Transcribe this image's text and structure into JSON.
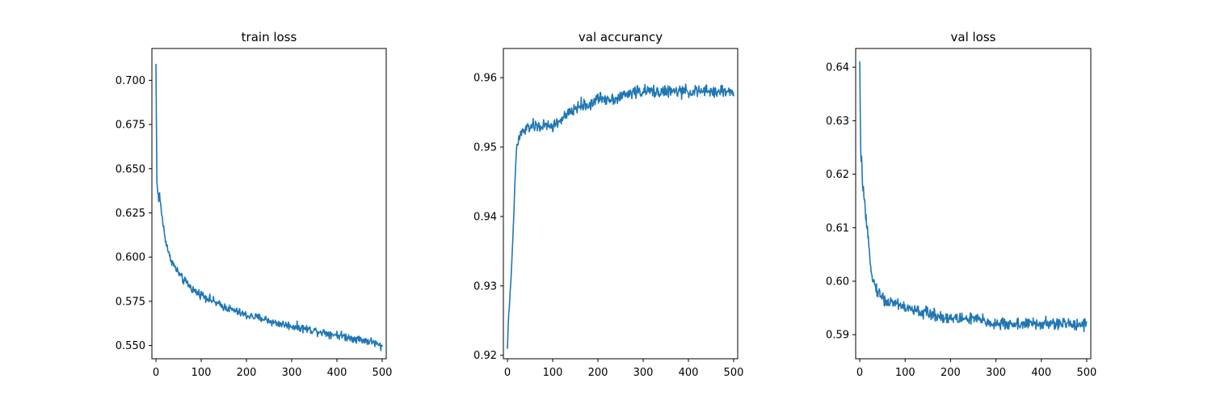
{
  "chart_data": [
    {
      "type": "line",
      "title": "train loss",
      "xlabel": "",
      "ylabel": "",
      "xlim": [
        -9,
        509
      ],
      "ylim": [
        0.5425,
        0.718
      ],
      "xticks": [
        0,
        100,
        200,
        300,
        400,
        500
      ],
      "yticks": [
        0.55,
        0.575,
        0.6,
        0.625,
        0.65,
        0.675,
        0.7
      ],
      "ytick_labels": [
        "0.550",
        "0.575",
        "0.600",
        "0.625",
        "0.650",
        "0.675",
        "0.700"
      ],
      "grid": false,
      "series": [
        {
          "color": "#1f77b4",
          "x": [
            0,
            2,
            4,
            6,
            8,
            10,
            15,
            20,
            25,
            30,
            35,
            40,
            50,
            60,
            70,
            80,
            90,
            100,
            120,
            140,
            160,
            180,
            200,
            220,
            240,
            260,
            280,
            300,
            320,
            340,
            360,
            380,
            400,
            420,
            440,
            460,
            480,
            500
          ],
          "values": [
            0.709,
            0.642,
            0.638,
            0.632,
            0.635,
            0.63,
            0.62,
            0.611,
            0.606,
            0.6,
            0.598,
            0.595,
            0.591,
            0.587,
            0.585,
            0.582,
            0.58,
            0.579,
            0.576,
            0.573,
            0.571,
            0.569,
            0.567,
            0.566,
            0.565,
            0.563,
            0.562,
            0.561,
            0.56,
            0.559,
            0.558,
            0.557,
            0.556,
            0.555,
            0.554,
            0.553,
            0.552,
            0.549
          ],
          "noise": 0.0035
        }
      ]
    },
    {
      "type": "line",
      "title": "val accurancy",
      "xlabel": "",
      "ylabel": "",
      "xlim": [
        -9,
        509
      ],
      "ylim": [
        0.9195,
        0.9642
      ],
      "xticks": [
        0,
        100,
        200,
        300,
        400,
        500
      ],
      "yticks": [
        0.92,
        0.93,
        0.94,
        0.95,
        0.96
      ],
      "ytick_labels": [
        "0.92",
        "0.93",
        "0.94",
        "0.95",
        "0.96"
      ],
      "grid": false,
      "series": [
        {
          "color": "#1f77b4",
          "x": [
            0,
            2,
            4,
            6,
            8,
            10,
            12,
            14,
            16,
            18,
            20,
            25,
            30,
            40,
            50,
            60,
            80,
            100,
            120,
            140,
            160,
            180,
            200,
            240,
            280,
            320,
            360,
            400,
            440,
            480,
            500
          ],
          "values": [
            0.921,
            0.925,
            0.927,
            0.929,
            0.931,
            0.934,
            0.937,
            0.94,
            0.944,
            0.947,
            0.95,
            0.951,
            0.952,
            0.9525,
            0.953,
            0.953,
            0.953,
            0.953,
            0.954,
            0.955,
            0.956,
            0.956,
            0.957,
            0.957,
            0.958,
            0.958,
            0.958,
            0.958,
            0.958,
            0.958,
            0.958
          ],
          "noise": 0.0013
        }
      ]
    },
    {
      "type": "line",
      "title": "val loss",
      "xlabel": "",
      "ylabel": "",
      "xlim": [
        -9,
        509
      ],
      "ylim": [
        0.5855,
        0.6435
      ],
      "xticks": [
        0,
        100,
        200,
        300,
        400,
        500
      ],
      "yticks": [
        0.59,
        0.6,
        0.61,
        0.62,
        0.63,
        0.64
      ],
      "ytick_labels": [
        "0.59",
        "0.60",
        "0.61",
        "0.62",
        "0.63",
        "0.64"
      ],
      "grid": false,
      "series": [
        {
          "color": "#1f77b4",
          "x": [
            0,
            2,
            4,
            6,
            8,
            10,
            14,
            18,
            22,
            26,
            30,
            35,
            40,
            50,
            60,
            80,
            100,
            120,
            150,
            200,
            250,
            300,
            350,
            400,
            450,
            500
          ],
          "values": [
            0.641,
            0.624,
            0.622,
            0.619,
            0.617,
            0.615,
            0.611,
            0.608,
            0.605,
            0.602,
            0.6,
            0.599,
            0.598,
            0.597,
            0.596,
            0.596,
            0.595,
            0.5945,
            0.594,
            0.593,
            0.593,
            0.592,
            0.592,
            0.592,
            0.592,
            0.592
          ],
          "noise": 0.0017
        }
      ]
    }
  ]
}
